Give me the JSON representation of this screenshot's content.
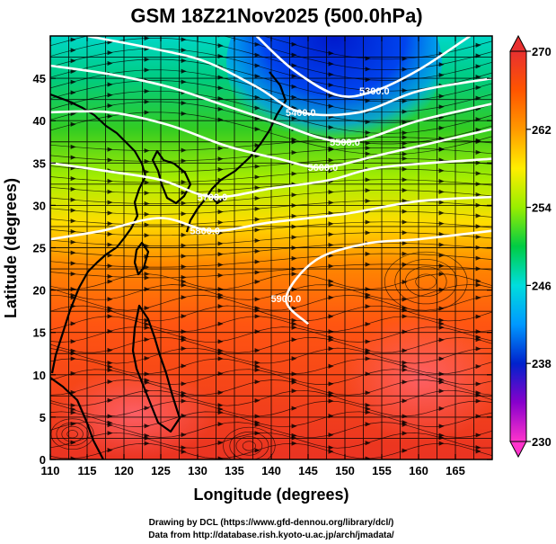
{
  "chart_data": {
    "type": "heatmap",
    "title": "GSM 18Z21Nov2025 (500.0hPa)",
    "xlabel": "Longitude (degrees)",
    "ylabel": "Latitude  (degrees)",
    "xlim": [
      110,
      170
    ],
    "ylim": [
      0,
      50
    ],
    "x_ticks": [
      "110",
      "115",
      "120",
      "125",
      "130",
      "135",
      "140",
      "145",
      "150",
      "155",
      "160",
      "165"
    ],
    "y_ticks": [
      "0",
      "5",
      "10",
      "15",
      "20",
      "25",
      "30",
      "35",
      "40",
      "45"
    ],
    "grid": true,
    "colorbar": {
      "min": 230,
      "max": 270,
      "tick_labels": [
        "270",
        "262",
        "254",
        "246",
        "238",
        "230"
      ],
      "colors": [
        "#ff33cc",
        "#8800cc",
        "#0022cc",
        "#0099ff",
        "#00dddd",
        "#00cc44",
        "#99ee00",
        "#ffee00",
        "#ff9900",
        "#ff5500",
        "#e83030"
      ]
    },
    "contours": [
      {
        "label": "5900.0",
        "lon": 142,
        "lat": 19,
        "path": [
          [
            145,
            16
          ],
          [
            142,
            19
          ],
          [
            146,
            23.5
          ],
          [
            153,
            25.5
          ],
          [
            160,
            26
          ],
          [
            170,
            27
          ]
        ]
      },
      {
        "label": "5800.0",
        "lon": 131,
        "lat": 27,
        "path": [
          [
            110,
            26
          ],
          [
            117,
            27
          ],
          [
            125,
            28.5
          ],
          [
            132,
            27
          ],
          [
            140,
            28
          ],
          [
            150,
            29
          ],
          [
            160,
            30.5
          ],
          [
            170,
            31
          ]
        ]
      },
      {
        "label": "5700.0",
        "lon": 132,
        "lat": 31,
        "path": [
          [
            110,
            35
          ],
          [
            118,
            34
          ],
          [
            125,
            33
          ],
          [
            132,
            31
          ],
          [
            140,
            32
          ],
          [
            148,
            33
          ],
          [
            155,
            34.5
          ],
          [
            170,
            35.5
          ]
        ]
      },
      {
        "label": "5600.0",
        "lon": 147,
        "lat": 34.5,
        "path": [
          [
            110,
            41
          ],
          [
            118,
            41
          ],
          [
            126,
            39.5
          ],
          [
            134,
            37
          ],
          [
            141,
            35.5
          ],
          [
            147,
            34.5
          ],
          [
            155,
            36
          ],
          [
            165,
            38
          ],
          [
            170,
            39
          ]
        ]
      },
      {
        "label": "5500.0",
        "lon": 150,
        "lat": 37.5,
        "path": [
          [
            110,
            46.5
          ],
          [
            118,
            45.5
          ],
          [
            126,
            44
          ],
          [
            133,
            42
          ],
          [
            140,
            40
          ],
          [
            150,
            37.5
          ],
          [
            160,
            40
          ],
          [
            170,
            42
          ]
        ]
      },
      {
        "label": "5400.0",
        "lon": 144,
        "lat": 41,
        "path": [
          [
            115,
            50
          ],
          [
            124,
            48.5
          ],
          [
            131,
            47
          ],
          [
            138,
            44
          ],
          [
            144,
            41
          ],
          [
            152,
            41
          ],
          [
            160,
            43.5
          ],
          [
            170,
            45
          ]
        ]
      },
      {
        "label": "5300.0",
        "lon": 154,
        "lat": 43.5,
        "path": [
          [
            138,
            50
          ],
          [
            143,
            46
          ],
          [
            149,
            43
          ],
          [
            154,
            43.5
          ],
          [
            160,
            46
          ],
          [
            167,
            50
          ]
        ]
      }
    ],
    "annotations": [
      "Drawing by DCL (https://www.gfd-dennou.org/library/dcl/)",
      "Data from http://database.rish.kyoto-u.ac.jp/arch/jmadata/"
    ]
  }
}
